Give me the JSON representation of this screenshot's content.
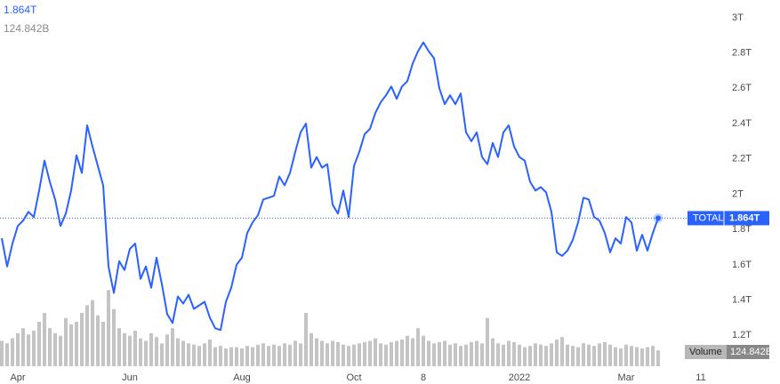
{
  "chart_data": {
    "type": "line",
    "categories": [
      null,
      null,
      null,
      "Apr",
      null,
      null,
      null,
      null,
      null,
      null,
      null,
      null,
      null,
      null,
      null,
      null,
      null,
      null,
      null,
      null,
      null,
      null,
      null,
      null,
      "Jun",
      null,
      null,
      null,
      null,
      null,
      null,
      null,
      null,
      null,
      null,
      null,
      null,
      null,
      null,
      null,
      null,
      null,
      null,
      null,
      null,
      "Aug",
      null,
      null,
      null,
      null,
      null,
      null,
      null,
      null,
      null,
      null,
      null,
      null,
      null,
      null,
      null,
      null,
      null,
      null,
      null,
      null,
      "Oct",
      null,
      null,
      null,
      null,
      null,
      null,
      null,
      null,
      null,
      null,
      null,
      null,
      "8",
      null,
      null,
      null,
      null,
      null,
      null,
      null,
      null,
      null,
      null,
      null,
      null,
      null,
      null,
      null,
      null,
      null,
      "2022",
      null,
      null,
      null,
      null,
      null,
      null,
      null,
      null,
      null,
      null,
      null,
      null,
      null,
      null,
      null,
      null,
      null,
      null,
      null,
      "Mar",
      null,
      null,
      null,
      null,
      null,
      null,
      null,
      null,
      null,
      null,
      null,
      null,
      null,
      "11"
    ],
    "series": [
      {
        "name": "TOTAL",
        "color": "#2962ff",
        "values": [
          1.75,
          1.59,
          1.72,
          1.82,
          1.85,
          1.9,
          1.87,
          2.02,
          2.19,
          2.07,
          1.97,
          1.82,
          1.89,
          2.02,
          2.22,
          2.12,
          2.39,
          2.27,
          2.16,
          2.05,
          1.59,
          1.44,
          1.62,
          1.57,
          1.69,
          1.72,
          1.52,
          1.59,
          1.47,
          1.64,
          1.49,
          1.32,
          1.27,
          1.42,
          1.38,
          1.43,
          1.35,
          1.37,
          1.39,
          1.3,
          1.24,
          1.23,
          1.39,
          1.47,
          1.6,
          1.64,
          1.78,
          1.84,
          1.88,
          1.97,
          1.98,
          1.99,
          2.1,
          2.05,
          2.12,
          2.24,
          2.35,
          2.4,
          2.15,
          2.21,
          2.15,
          2.17,
          1.94,
          1.89,
          2.02,
          1.87,
          2.16,
          2.24,
          2.34,
          2.37,
          2.46,
          2.52,
          2.56,
          2.61,
          2.54,
          2.61,
          2.64,
          2.74,
          2.81,
          2.86,
          2.81,
          2.77,
          2.6,
          2.51,
          2.56,
          2.51,
          2.57,
          2.35,
          2.3,
          2.35,
          2.21,
          2.17,
          2.29,
          2.21,
          2.35,
          2.39,
          2.27,
          2.21,
          2.19,
          2.07,
          2.02,
          2.04,
          2.01,
          1.9,
          1.67,
          1.65,
          1.68,
          1.74,
          1.84,
          1.98,
          1.97,
          1.87,
          1.85,
          1.78,
          1.67,
          1.75,
          1.72,
          1.87,
          1.84,
          1.68,
          1.77,
          1.68,
          1.78,
          1.864,
          null,
          null,
          null,
          null,
          null,
          null,
          null,
          null
        ],
        "value_labels": [
          null,
          null,
          null,
          null,
          null,
          null,
          null,
          null,
          null,
          null,
          null,
          null,
          null,
          null,
          null,
          null,
          null,
          null,
          null,
          null,
          null,
          null,
          null,
          null,
          null,
          null,
          null,
          null,
          null,
          null,
          null,
          null,
          null,
          null,
          null,
          null,
          null,
          null,
          null,
          null,
          null,
          null,
          null,
          null,
          null,
          null,
          null,
          null,
          null,
          null,
          null,
          null,
          null,
          null,
          null,
          null,
          null,
          null,
          null,
          null,
          null,
          null,
          null,
          null,
          null,
          null,
          null,
          null,
          null,
          null,
          null,
          null,
          null,
          null,
          null,
          null,
          null,
          null,
          null,
          null,
          null,
          null,
          null,
          null,
          null,
          null,
          null,
          null,
          null,
          null,
          null,
          null,
          null,
          null,
          null,
          null,
          null,
          null,
          null,
          null,
          null,
          null,
          null,
          null,
          null,
          null,
          null,
          null,
          null,
          null,
          null,
          null,
          null,
          null,
          null,
          null,
          null,
          null,
          null,
          null,
          null,
          null,
          null,
          "1.864T",
          null,
          null,
          null,
          null,
          null,
          null,
          null,
          null
        ]
      },
      {
        "name": "Volume",
        "color": "#c4c4c4",
        "axis": "y2",
        "values": [
          200,
          180,
          220,
          260,
          300,
          250,
          280,
          350,
          420,
          300,
          260,
          240,
          380,
          330,
          350,
          420,
          480,
          520,
          400,
          350,
          600,
          450,
          300,
          260,
          240,
          280,
          220,
          200,
          260,
          230,
          180,
          250,
          300,
          220,
          200,
          180,
          170,
          160,
          180,
          210,
          150,
          160,
          140,
          150,
          150,
          140,
          160,
          150,
          170,
          180,
          160,
          170,
          160,
          180,
          170,
          200,
          180,
          420,
          260,
          220,
          200,
          180,
          200,
          190,
          170,
          160,
          170,
          180,
          190,
          200,
          220,
          180,
          170,
          190,
          200,
          210,
          240,
          220,
          300,
          240,
          200,
          180,
          190,
          200,
          170,
          180,
          160,
          170,
          190,
          200,
          180,
          380,
          220,
          180,
          170,
          200,
          190,
          170,
          150,
          160,
          180,
          170,
          160,
          180,
          210,
          230,
          170,
          160,
          150,
          180,
          170,
          160,
          180,
          190,
          170,
          150,
          140,
          170,
          160,
          150,
          140,
          150,
          160,
          124.842,
          null,
          null,
          null,
          null,
          null,
          null,
          null,
          null
        ],
        "value_labels": [
          null,
          null,
          null,
          null,
          null,
          null,
          null,
          null,
          null,
          null,
          null,
          null,
          null,
          null,
          null,
          null,
          null,
          null,
          null,
          null,
          null,
          null,
          null,
          null,
          null,
          null,
          null,
          null,
          null,
          null,
          null,
          null,
          null,
          null,
          null,
          null,
          null,
          null,
          null,
          null,
          null,
          null,
          null,
          null,
          null,
          null,
          null,
          null,
          null,
          null,
          null,
          null,
          null,
          null,
          null,
          null,
          null,
          null,
          null,
          null,
          null,
          null,
          null,
          null,
          null,
          null,
          null,
          null,
          null,
          null,
          null,
          null,
          null,
          null,
          null,
          null,
          null,
          null,
          null,
          null,
          null,
          null,
          null,
          null,
          null,
          null,
          null,
          null,
          null,
          null,
          null,
          null,
          null,
          null,
          null,
          null,
          null,
          null,
          null,
          null,
          null,
          null,
          null,
          null,
          null,
          null,
          null,
          null,
          null,
          null,
          null,
          null,
          null,
          null,
          null,
          null,
          null,
          null,
          null,
          null,
          null,
          null,
          null,
          "124.842B",
          null,
          null,
          null,
          null,
          null,
          null,
          null,
          null
        ]
      }
    ],
    "ylim": [
      1.01,
      3.1
    ],
    "yticks": [
      {
        "value": 1.2,
        "label": "1.2T"
      },
      {
        "value": 1.4,
        "label": "1.4T"
      },
      {
        "value": 1.6,
        "label": "1.6T"
      },
      {
        "value": 1.8,
        "label": "1.8T"
      },
      {
        "value": 2,
        "label": "2T"
      },
      {
        "value": 2.2,
        "label": "2.2T"
      },
      {
        "value": 2.4,
        "label": "2.4T"
      },
      {
        "value": 2.6,
        "label": "2.6T"
      },
      {
        "value": 2.8,
        "label": "2.8T"
      },
      {
        "value": 3,
        "label": "3T"
      }
    ],
    "y2lim": [
      0,
      700
    ],
    "grid": false
  }
}
